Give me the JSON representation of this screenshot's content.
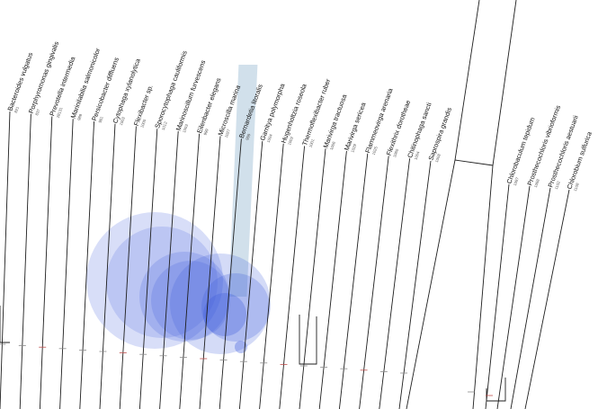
{
  "tree": {
    "taxa_main": [
      {
        "name": "Bacteroides vulgatus",
        "id": "821"
      },
      {
        "name": "Porphyromonas gingivalis",
        "id": "837"
      },
      {
        "name": "Prevotella intermedia",
        "id": "28131"
      },
      {
        "name": "Marinilabilia salmonicolor",
        "id": "989"
      },
      {
        "name": "Persicobacter diffluens",
        "id": "981"
      },
      {
        "name": "Cytophaga xylanolytica",
        "id": "1002"
      },
      {
        "name": "Flexibacter sp.",
        "id": "1005"
      },
      {
        "name": "Sporocytophaga cauliformis",
        "id": "1012"
      },
      {
        "name": "Marinoscillum furvescens",
        "id": "1003"
      },
      {
        "name": "Eilenbacter elegans",
        "id": "999"
      },
      {
        "name": "Microscilla marina",
        "id": "1027"
      },
      {
        "name": "Bernardetia litoralis",
        "id": "999",
        "highlighted": true
      },
      {
        "name": "Garritya polymorpha",
        "id": "1004"
      },
      {
        "name": "Hugenholtzia roseola",
        "id": "1002"
      },
      {
        "name": "Thermoflexibacter ruber",
        "id": "1001"
      },
      {
        "name": "Marivirga tractuosa",
        "id": "1006"
      },
      {
        "name": "Marivirga sericea",
        "id": "1029"
      },
      {
        "name": "Flammeovirga arenaria",
        "id": "1025"
      },
      {
        "name": "Flexithrix dorotheae",
        "id": "1060"
      },
      {
        "name": "Chitinophaga sancti",
        "id": "1004"
      },
      {
        "name": "Saprospira grandis",
        "id": "1008"
      }
    ],
    "taxa_right": [
      {
        "name": "Chlorobaculum tepidum",
        "id": "1097"
      },
      {
        "name": "Prosthecochloris vibrioformis",
        "id": "1098"
      },
      {
        "name": "Prosthecochloris aestuarii",
        "id": "1102"
      },
      {
        "name": "Chlorobium sulfurica",
        "id": "1108"
      }
    ]
  },
  "colors": {
    "branch": "#1e1e1e",
    "bubble": "#3c5bdc",
    "highlight": "#b8cfe0"
  }
}
